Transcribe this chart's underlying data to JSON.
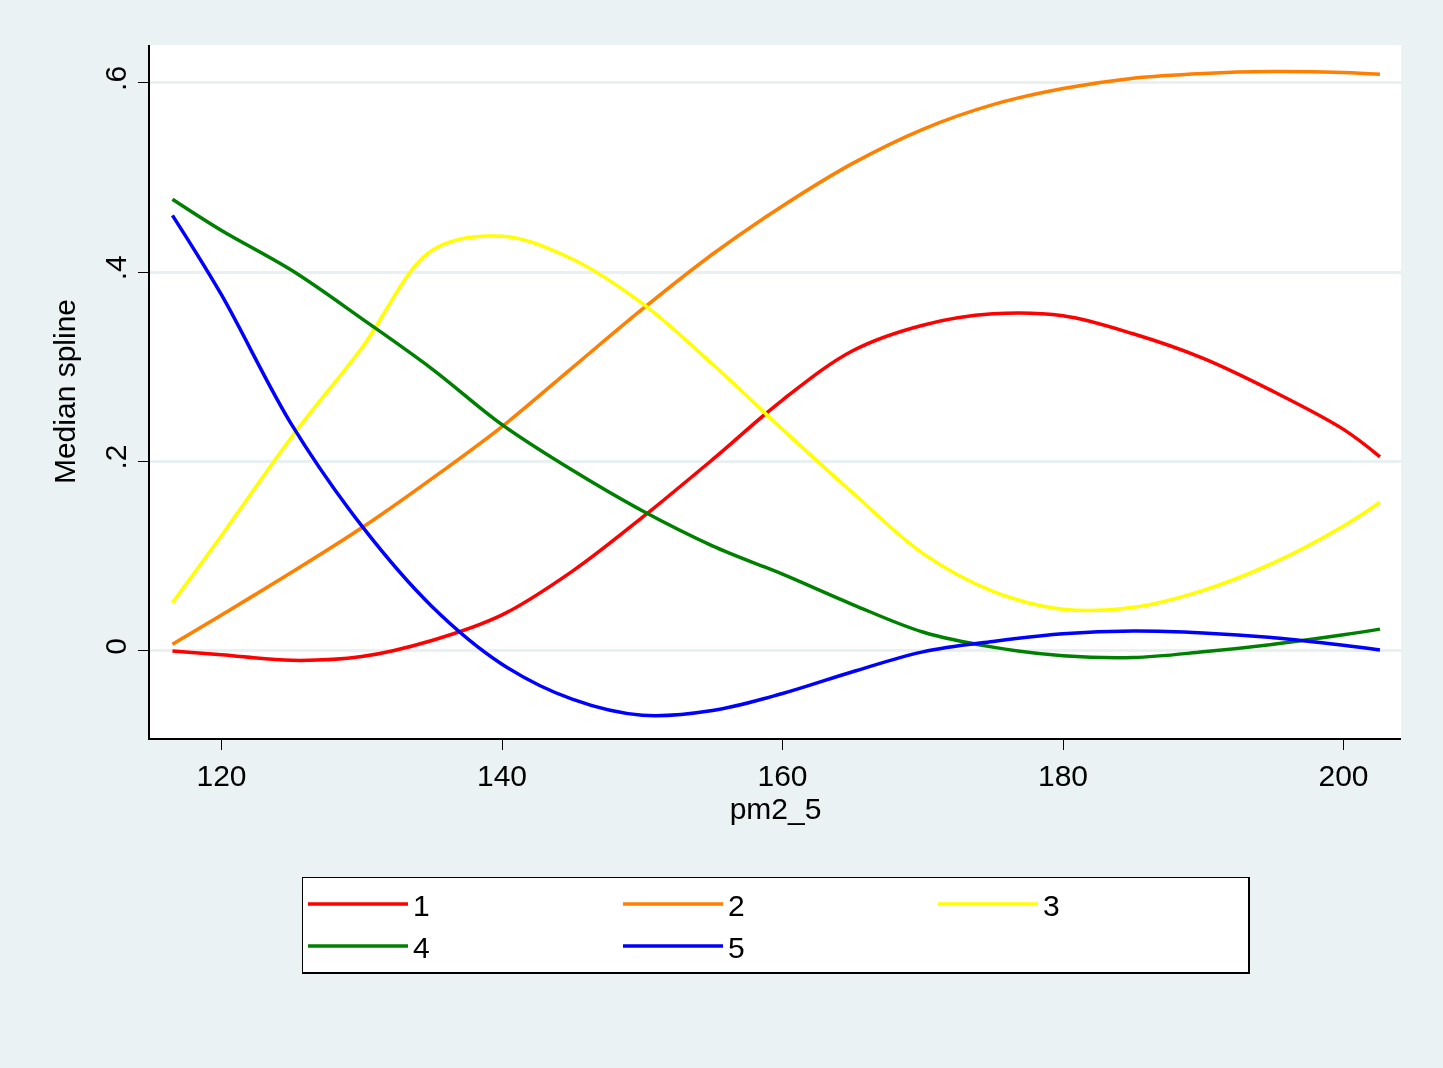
{
  "chart_data": {
    "type": "line",
    "xlabel": "pm2_5",
    "ylabel": "Median spline",
    "x": [
      116.5,
      120,
      125,
      130,
      135,
      140,
      145,
      150,
      155,
      160,
      165,
      170,
      175,
      180,
      185,
      190,
      195,
      200,
      202.6
    ],
    "series": [
      {
        "name": "1",
        "color": "#ff0000",
        "values": [
          0,
          -0.004,
          -0.01,
          -0.006,
          0.011,
          0.038,
          0.084,
          0.141,
          0.202,
          0.265,
          0.317,
          0.344,
          0.356,
          0.354,
          0.335,
          0.309,
          0.274,
          0.234,
          0.205
        ]
      },
      {
        "name": "2",
        "color": "#ff7f00",
        "values": [
          0.007,
          0.038,
          0.083,
          0.13,
          0.182,
          0.237,
          0.299,
          0.361,
          0.419,
          0.47,
          0.515,
          0.551,
          0.577,
          0.594,
          0.605,
          0.61,
          0.612,
          0.611,
          0.609
        ]
      },
      {
        "name": "3",
        "color": "#ffff00",
        "values": [
          0.051,
          0.122,
          0.226,
          0.32,
          0.423,
          0.438,
          0.414,
          0.367,
          0.303,
          0.234,
          0.167,
          0.103,
          0.063,
          0.044,
          0.046,
          0.064,
          0.093,
          0.132,
          0.157
        ]
      },
      {
        "name": "4",
        "color": "#008000",
        "values": [
          0.477,
          0.444,
          0.402,
          0.351,
          0.298,
          0.239,
          0.191,
          0.148,
          0.111,
          0.081,
          0.049,
          0.02,
          0.004,
          -0.005,
          -0.007,
          -0.001,
          0.007,
          0.017,
          0.023
        ]
      },
      {
        "name": "5",
        "color": "#0000ff",
        "values": [
          0.46,
          0.376,
          0.239,
          0.132,
          0.047,
          -0.014,
          -0.051,
          -0.068,
          -0.063,
          -0.045,
          -0.022,
          -0.001,
          0.01,
          0.018,
          0.021,
          0.019,
          0.014,
          0.006,
          0.001
        ]
      }
    ],
    "xlim": [
      114.9,
      204.1
    ],
    "ylim": [
      -0.092,
      0.64
    ],
    "xticks": [
      120,
      140,
      160,
      180,
      200
    ],
    "yticks": [
      {
        "value": 0,
        "label": "0"
      },
      {
        "value": 0.2,
        "label": ".2"
      },
      {
        "value": 0.4,
        "label": ".4"
      },
      {
        "value": 0.6,
        "label": ".6"
      }
    ],
    "grid": "y",
    "legend": "bottom",
    "marker": "none",
    "line_style": "solid"
  }
}
